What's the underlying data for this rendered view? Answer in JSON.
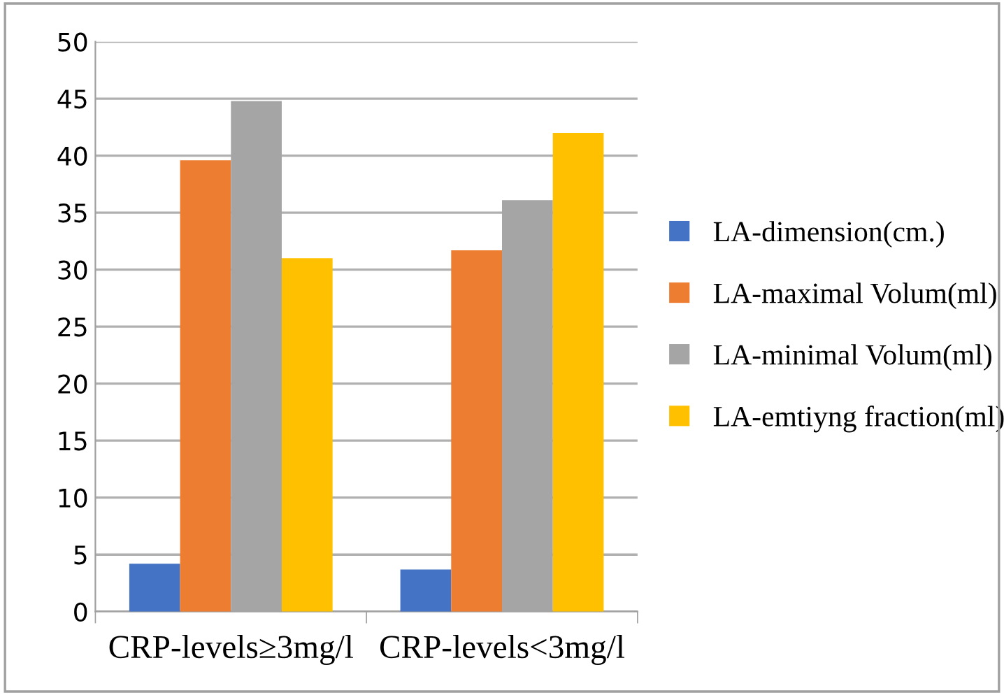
{
  "chart_data": {
    "type": "bar",
    "categories": [
      "CRP-levels≥3mg/l",
      "CRP-levels<3mg/l"
    ],
    "series": [
      {
        "name": "LA-dimension(cm.)",
        "color": "#4472c4",
        "values": [
          4.2,
          3.7
        ]
      },
      {
        "name": "LA-maximal Volum(ml)",
        "color": "#ed7d31",
        "values": [
          39.6,
          31.7
        ]
      },
      {
        "name": "LA-minimal Volum(ml)",
        "color": "#a5a5a5",
        "values": [
          44.8,
          36.1
        ]
      },
      {
        "name": "LA-emtiyng fraction(ml)",
        "color": "#ffc000",
        "values": [
          31.0,
          42.0
        ]
      }
    ],
    "ylim": [
      0,
      50
    ],
    "yticks": [
      0,
      5,
      10,
      15,
      20,
      25,
      30,
      35,
      40,
      45,
      50
    ],
    "grid": "y",
    "legend": "right"
  }
}
